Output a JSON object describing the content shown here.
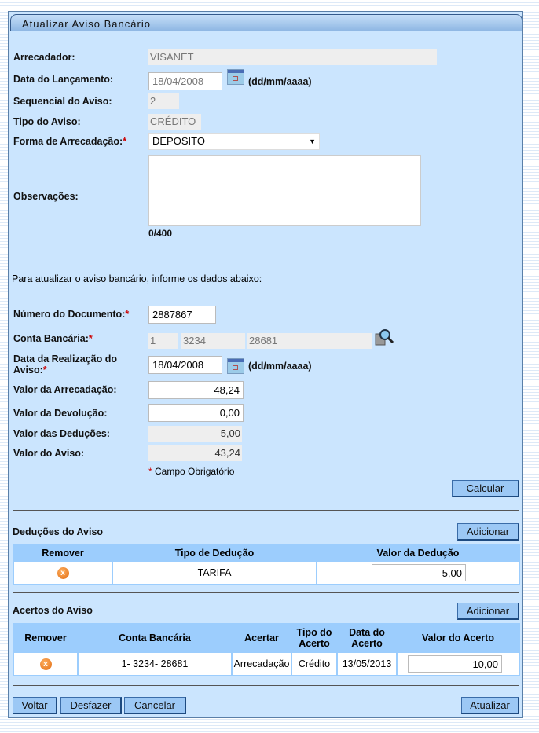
{
  "title": "Atualizar Aviso Bancário",
  "form": {
    "arrecadador_label": "Arrecadador:",
    "arrecadador": "VISANET",
    "data_lanc_label": "Data do Lançamento:",
    "data_lanc": "18/04/2008",
    "date_format": "(dd/mm/aaaa)",
    "sequencial_label": "Sequencial do Aviso:",
    "sequencial": "2",
    "tipo_label": "Tipo do Aviso:",
    "tipo": "CRÉDITO",
    "forma_label": "Forma de Arrecadação:",
    "forma": "DEPOSITO",
    "obs_label": "Observações:",
    "obs": "",
    "obs_count": "0/400",
    "instrucao": "Para atualizar o aviso bancário, informe os dados abaixo:",
    "num_doc_label": "Número do Documento:",
    "num_doc": "2887867",
    "conta_label": "Conta Bancária:",
    "conta_banco": "1",
    "conta_agencia": "3234",
    "conta_numero": "28681",
    "data_real_label": "Data da Realização do Aviso:",
    "data_real": "18/04/2008",
    "valor_arrec_label": "Valor da Arrecadação:",
    "valor_arrec": "48,24",
    "valor_dev_label": "Valor da Devolução:",
    "valor_dev": "0,00",
    "valor_ded_label": "Valor das Deduções:",
    "valor_ded": "5,00",
    "valor_aviso_label": "Valor do Aviso:",
    "valor_aviso": "43,24",
    "required": "*",
    "required_note": "Campo Obrigatório",
    "calcular": "Calcular"
  },
  "deducoes": {
    "title": "Deduções do Aviso",
    "add": "Adicionar",
    "headers": [
      "Remover",
      "Tipo de Dedução",
      "Valor da Dedução"
    ],
    "rows": [
      {
        "tipo": "TARIFA",
        "valor": "5,00"
      }
    ]
  },
  "acertos": {
    "title": "Acertos do Aviso",
    "add": "Adicionar",
    "headers": [
      "Remover",
      "Conta Bancária",
      "Acertar",
      "Tipo do Acerto",
      "Data do Acerto",
      "Valor do Acerto"
    ],
    "rows": [
      {
        "conta": "1- 3234- 28681",
        "acertar": "Arrecadação",
        "tipo": "Crédito",
        "data": "13/05/2013",
        "valor": "10,00"
      }
    ]
  },
  "buttons": {
    "voltar": "Voltar",
    "desfazer": "Desfazer",
    "cancelar": "Cancelar",
    "atualizar": "Atualizar"
  },
  "icons": {
    "remove": "x",
    "calendar": "calendar-icon",
    "search": "magnifier-icon"
  }
}
